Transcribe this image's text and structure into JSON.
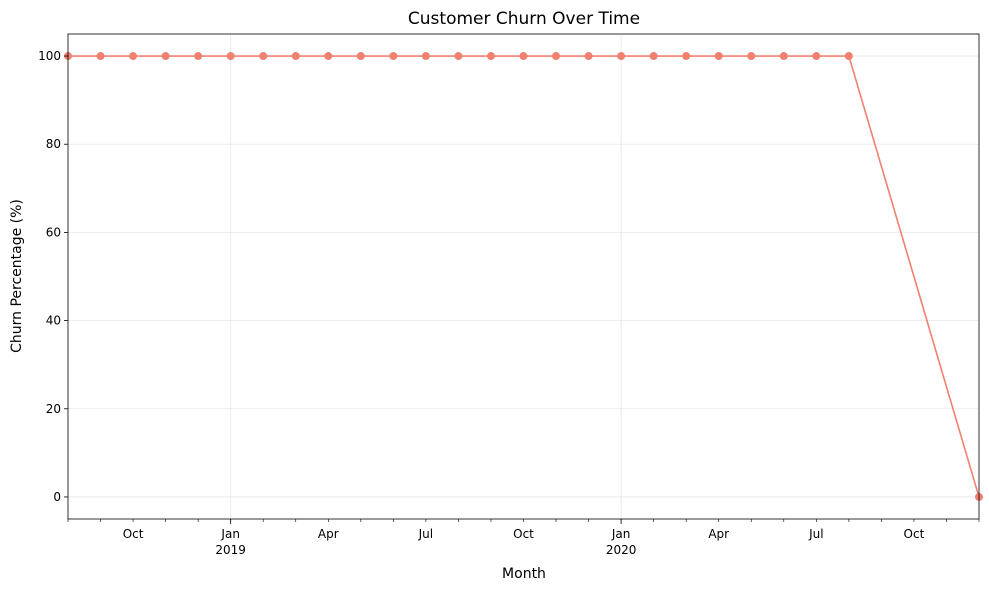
{
  "chart_data": {
    "type": "line",
    "title": "Customer Churn Over Time",
    "xlabel": "Month",
    "ylabel": "Churn Percentage (%)",
    "x_range": [
      "2018-08",
      "2020-12"
    ],
    "ylim": [
      -5,
      105
    ],
    "grid": true,
    "legend": "none",
    "y_ticks": [
      0,
      20,
      40,
      60,
      80,
      100
    ],
    "x_major_ticks": [
      {
        "date": "2019-01",
        "label": "Jan",
        "sub": "2019"
      },
      {
        "date": "2020-01",
        "label": "Jan",
        "sub": "2020"
      }
    ],
    "x_minor_labeled_ticks": [
      {
        "date": "2018-10",
        "label": "Oct"
      },
      {
        "date": "2019-04",
        "label": "Apr"
      },
      {
        "date": "2019-07",
        "label": "Jul"
      },
      {
        "date": "2019-10",
        "label": "Oct"
      },
      {
        "date": "2020-04",
        "label": "Apr"
      },
      {
        "date": "2020-07",
        "label": "Jul"
      },
      {
        "date": "2020-10",
        "label": "Oct"
      }
    ],
    "color": "#f08070",
    "series": [
      {
        "x": [
          "2018-08",
          "2018-09",
          "2018-10",
          "2018-11",
          "2018-12",
          "2019-01",
          "2019-02",
          "2019-03",
          "2019-04",
          "2019-05",
          "2019-06",
          "2019-07",
          "2019-08",
          "2019-09",
          "2019-10",
          "2019-11",
          "2019-12",
          "2020-01",
          "2020-02",
          "2020-03",
          "2020-04",
          "2020-05",
          "2020-06",
          "2020-07",
          "2020-08",
          "2020-12"
        ],
        "values": [
          100,
          100,
          100,
          100,
          100,
          100,
          100,
          100,
          100,
          100,
          100,
          100,
          100,
          100,
          100,
          100,
          100,
          100,
          100,
          100,
          100,
          100,
          100,
          100,
          100,
          0
        ]
      }
    ]
  }
}
